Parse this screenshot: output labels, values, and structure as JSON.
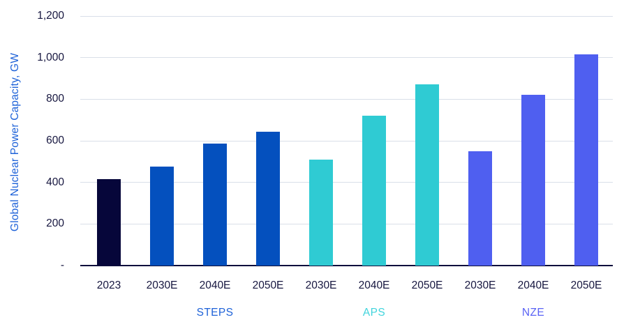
{
  "chart_data": {
    "type": "bar",
    "title": "",
    "ylabel": "Global Nuclear Power Capacity, GW",
    "xlabel": "",
    "ylim": [
      0,
      1200
    ],
    "grid": true,
    "legend_position": "none",
    "yticks": [
      {
        "value": 0,
        "label": "-"
      },
      {
        "value": 200,
        "label": "200"
      },
      {
        "value": 400,
        "label": "400"
      },
      {
        "value": 600,
        "label": "600"
      },
      {
        "value": 800,
        "label": "800"
      },
      {
        "value": 1000,
        "label": "1,000"
      },
      {
        "value": 1200,
        "label": "1,200"
      }
    ],
    "bars": [
      {
        "category": "2023",
        "group": "",
        "value": 416,
        "color": "#06063A"
      },
      {
        "category": "2030E",
        "group": "STEPS",
        "value": 475,
        "color": "#0450BE"
      },
      {
        "category": "2040E",
        "group": "STEPS",
        "value": 585,
        "color": "#0450BE"
      },
      {
        "category": "2050E",
        "group": "STEPS",
        "value": 645,
        "color": "#0450BE"
      },
      {
        "category": "2030E",
        "group": "APS",
        "value": 510,
        "color": "#2FCBD3"
      },
      {
        "category": "2040E",
        "group": "APS",
        "value": 720,
        "color": "#2FCBD3"
      },
      {
        "category": "2050E",
        "group": "APS",
        "value": 870,
        "color": "#2FCBD3"
      },
      {
        "category": "2030E",
        "group": "NZE",
        "value": 550,
        "color": "#4F5FF0"
      },
      {
        "category": "2040E",
        "group": "NZE",
        "value": 820,
        "color": "#4F5FF0"
      },
      {
        "category": "2050E",
        "group": "NZE",
        "value": 1015,
        "color": "#4F5FF0"
      }
    ],
    "groups": [
      {
        "name": "STEPS",
        "color": "#1E62D8",
        "center_index": 2
      },
      {
        "name": "APS",
        "color": "#41D4DC",
        "center_index": 5
      },
      {
        "name": "NZE",
        "color": "#5A63F5",
        "center_index": 8
      }
    ],
    "colors": {
      "axis_title": "#1E62D8",
      "tick_text": "#16163F",
      "gridline": "#D9DFE8",
      "baseline": "#0E0E3C"
    }
  }
}
